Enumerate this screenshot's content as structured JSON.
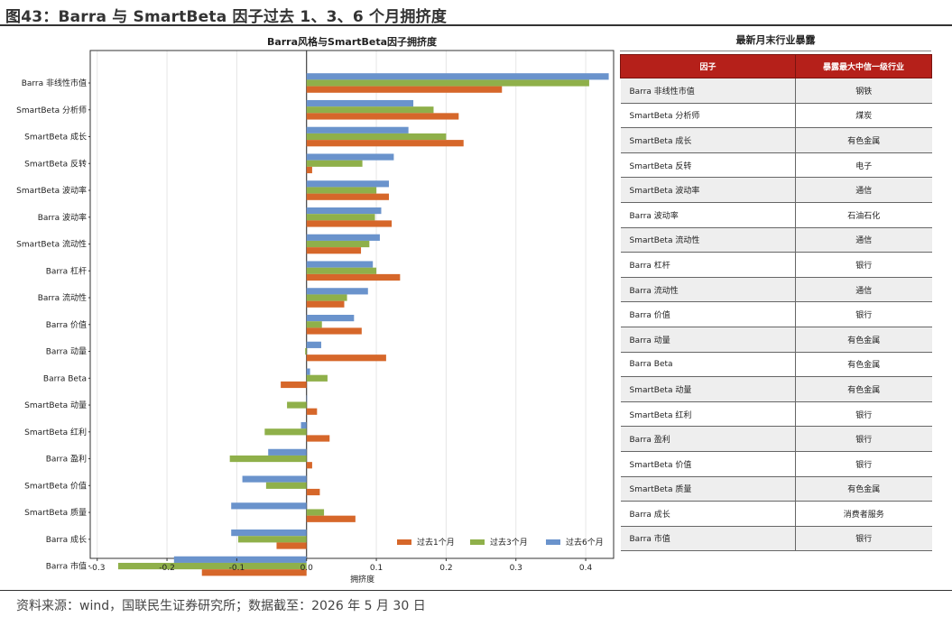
{
  "header": {
    "title": "图43：Barra 与 SmartBeta 因子过去 1、3、6 个月拥挤度"
  },
  "footer": {
    "source": "资料来源：wind，国联民生证券研究所；数据截至：2026 年 5 月 30 日"
  },
  "chart_data": {
    "type": "bar",
    "orientation": "horizontal",
    "title": "Barra风格与SmartBeta因子拥挤度",
    "xlabel": "拥挤度",
    "ylabel": "",
    "xlim": [
      -0.31,
      0.44
    ],
    "xticks": [
      -0.3,
      -0.2,
      -0.1,
      0.0,
      0.1,
      0.2,
      0.3,
      0.4
    ],
    "xtick_labels": [
      "-0.3",
      "-0.2",
      "-0.1",
      "0.0",
      "0.1",
      "0.2",
      "0.3",
      "0.4"
    ],
    "grid": "vertical",
    "legend_position": "bottom-right",
    "categories": [
      "Barra 非线性市值",
      "SmartBeta 分析师",
      "SmartBeta 成长",
      "SmartBeta 反转",
      "SmartBeta 波动率",
      "Barra 波动率",
      "SmartBeta 流动性",
      "Barra 杠杆",
      "Barra 流动性",
      "Barra 价值",
      "Barra 动量",
      "Barra Beta",
      "SmartBeta 动量",
      "SmartBeta 红利",
      "Barra 盈利",
      "SmartBeta 价值",
      "SmartBeta 质量",
      "Barra 成长",
      "Barra 市值"
    ],
    "series": [
      {
        "name": "过去1个月",
        "color": "#d6672a",
        "values": [
          0.28,
          0.218,
          0.225,
          0.008,
          0.118,
          0.122,
          0.078,
          0.134,
          0.054,
          0.079,
          0.114,
          -0.037,
          0.015,
          0.033,
          0.008,
          0.019,
          0.07,
          -0.043,
          -0.15
        ]
      },
      {
        "name": "过去3个月",
        "color": "#8fb04a",
        "values": [
          0.405,
          0.182,
          0.2,
          0.08,
          0.1,
          0.098,
          0.09,
          0.1,
          0.058,
          0.022,
          -0.002,
          0.03,
          -0.028,
          -0.06,
          -0.11,
          -0.058,
          0.025,
          -0.098,
          -0.27
        ]
      },
      {
        "name": "过去6个月",
        "color": "#6a93cc",
        "values": [
          0.433,
          0.153,
          0.146,
          0.125,
          0.118,
          0.107,
          0.105,
          0.095,
          0.088,
          0.068,
          0.021,
          0.005,
          0.0,
          -0.008,
          -0.055,
          -0.092,
          -0.108,
          -0.108,
          -0.19
        ]
      }
    ]
  },
  "table": {
    "title": "最新月末行业暴露",
    "headers": [
      "因子",
      "暴露最大中信一级行业"
    ],
    "rows": [
      {
        "factor": "Barra 非线性市值",
        "industry": "钢铁"
      },
      {
        "factor": "SmartBeta 分析师",
        "industry": "煤炭"
      },
      {
        "factor": "SmartBeta 成长",
        "industry": "有色金属"
      },
      {
        "factor": "SmartBeta 反转",
        "industry": "电子"
      },
      {
        "factor": "SmartBeta 波动率",
        "industry": "通信"
      },
      {
        "factor": "Barra 波动率",
        "industry": "石油石化"
      },
      {
        "factor": "SmartBeta 流动性",
        "industry": "通信"
      },
      {
        "factor": "Barra 杠杆",
        "industry": "银行"
      },
      {
        "factor": "Barra 流动性",
        "industry": "通信"
      },
      {
        "factor": "Barra 价值",
        "industry": "银行"
      },
      {
        "factor": "Barra 动量",
        "industry": "有色金属"
      },
      {
        "factor": "Barra Beta",
        "industry": "有色金属"
      },
      {
        "factor": "SmartBeta 动量",
        "industry": "有色金属"
      },
      {
        "factor": "SmartBeta 红利",
        "industry": "银行"
      },
      {
        "factor": "Barra 盈利",
        "industry": "银行"
      },
      {
        "factor": "SmartBeta 价值",
        "industry": "银行"
      },
      {
        "factor": "SmartBeta 质量",
        "industry": "有色金属"
      },
      {
        "factor": "Barra 成长",
        "industry": "消费者服务"
      },
      {
        "factor": "Barra 市值",
        "industry": "银行"
      }
    ]
  }
}
